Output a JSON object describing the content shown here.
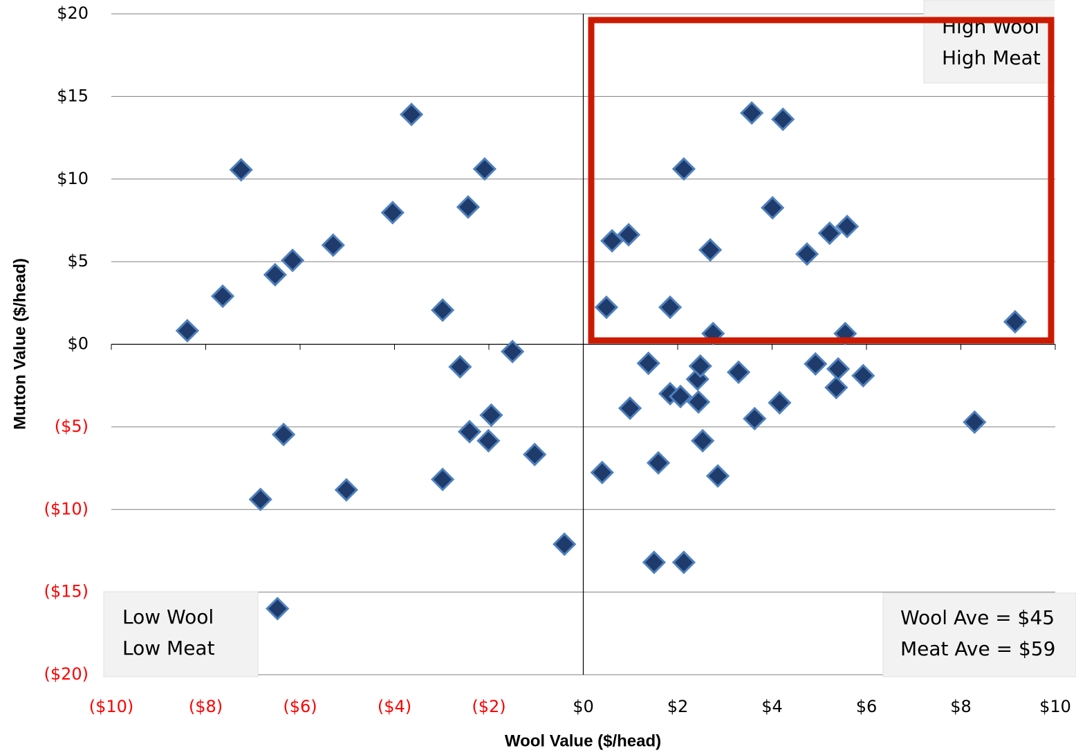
{
  "chart_data": {
    "type": "scatter",
    "x_label": "Wool Value ($/head)",
    "y_label": "Mutton Value ($/head)",
    "xlim": [
      -10,
      10
    ],
    "ylim": [
      -20,
      20
    ],
    "xticks": [
      {
        "value": -10,
        "label": "($10)"
      },
      {
        "value": -8,
        "label": "($8)"
      },
      {
        "value": -6,
        "label": "($6)"
      },
      {
        "value": -4,
        "label": "($4)"
      },
      {
        "value": -2,
        "label": "($2)"
      },
      {
        "value": 0,
        "label": "$0"
      },
      {
        "value": 2,
        "label": "$2"
      },
      {
        "value": 4,
        "label": "$4"
      },
      {
        "value": 6,
        "label": "$6"
      },
      {
        "value": 8,
        "label": "$8"
      },
      {
        "value": 10,
        "label": "$10"
      }
    ],
    "yticks": [
      {
        "value": -20,
        "label": "($20)"
      },
      {
        "value": -15,
        "label": "($15)"
      },
      {
        "value": -10,
        "label": "($10)"
      },
      {
        "value": -5,
        "label": "($5)"
      },
      {
        "value": 0,
        "label": "$0"
      },
      {
        "value": 5,
        "label": "$5"
      },
      {
        "value": 10,
        "label": "$10"
      },
      {
        "value": 15,
        "label": "$15"
      },
      {
        "value": 20,
        "label": "$20"
      }
    ],
    "grid": true,
    "negative_tick_color": "#ff0000",
    "color": "#1f3b6b",
    "x": [
      -8.39,
      -7.64,
      -7.25,
      -6.53,
      -6.16,
      -5.3,
      -4.04,
      -3.64,
      -2.98,
      -2.44,
      -2.09,
      -2.61,
      -1.5,
      -6.35,
      -6.84,
      -5.02,
      -6.48,
      -2.98,
      -2.41,
      -2.01,
      -1.95,
      -1.03,
      -0.4,
      0.4,
      0.61,
      0.96,
      0.49,
      1.84,
      2.13,
      2.69,
      2.75,
      3.57,
      4.23,
      4.01,
      4.74,
      5.22,
      5.59,
      5.55,
      9.15,
      1.38,
      0.99,
      1.84,
      2.06,
      2.42,
      2.48,
      2.44,
      2.53,
      2.85,
      1.59,
      1.5,
      2.13,
      3.29,
      3.63,
      4.16,
      4.92,
      5.4,
      5.36,
      5.93,
      8.29
    ],
    "y": [
      0.82,
      2.91,
      10.56,
      4.21,
      5.08,
      6.0,
      7.97,
      13.91,
      2.07,
      8.31,
      10.61,
      -1.36,
      -0.44,
      -5.46,
      -9.39,
      -8.81,
      -16.0,
      -8.18,
      -5.29,
      -5.84,
      -4.29,
      -6.67,
      -12.1,
      -7.76,
      6.26,
      6.63,
      2.24,
      2.24,
      10.61,
      5.71,
      0.65,
      14.0,
      13.62,
      8.26,
      5.46,
      6.72,
      7.13,
      0.65,
      1.36,
      -1.15,
      -3.87,
      -2.99,
      -3.16,
      -2.11,
      -1.32,
      -3.49,
      -5.84,
      -7.97,
      -7.18,
      -13.2,
      -13.2,
      -1.69,
      -4.5,
      -3.54,
      -1.19,
      -1.49,
      -2.62,
      -1.9,
      -4.71
    ],
    "annotations": [
      {
        "lines": [
          "High Wool",
          "High Meat"
        ]
      },
      {
        "lines": [
          "Low Wool",
          "Low Meat"
        ]
      },
      {
        "lines": [
          "Wool Ave = $45",
          "Meat Ave = $59"
        ]
      }
    ]
  }
}
